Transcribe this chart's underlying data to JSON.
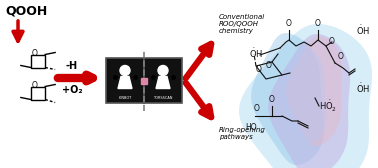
{
  "bg_color": "#ffffff",
  "qooh_label": "QOOH",
  "minus_h": "-H",
  "plus_o2": "+O₂",
  "conventional_label": "Conventional\nROO/QOOH\nchemistry",
  "ring_opening_label": "Ring-opening\npathways",
  "arrow_color": "#cc0000",
  "flame_blue_outer": "#7ec8e3",
  "flame_blue_left": "#85c8e8",
  "flame_purple": "#b8a0d8",
  "flame_pink": "#e8b0c0",
  "flame_lavender": "#c8b0e8",
  "oh_dot_color": "#111111",
  "struct_color": "#111111"
}
